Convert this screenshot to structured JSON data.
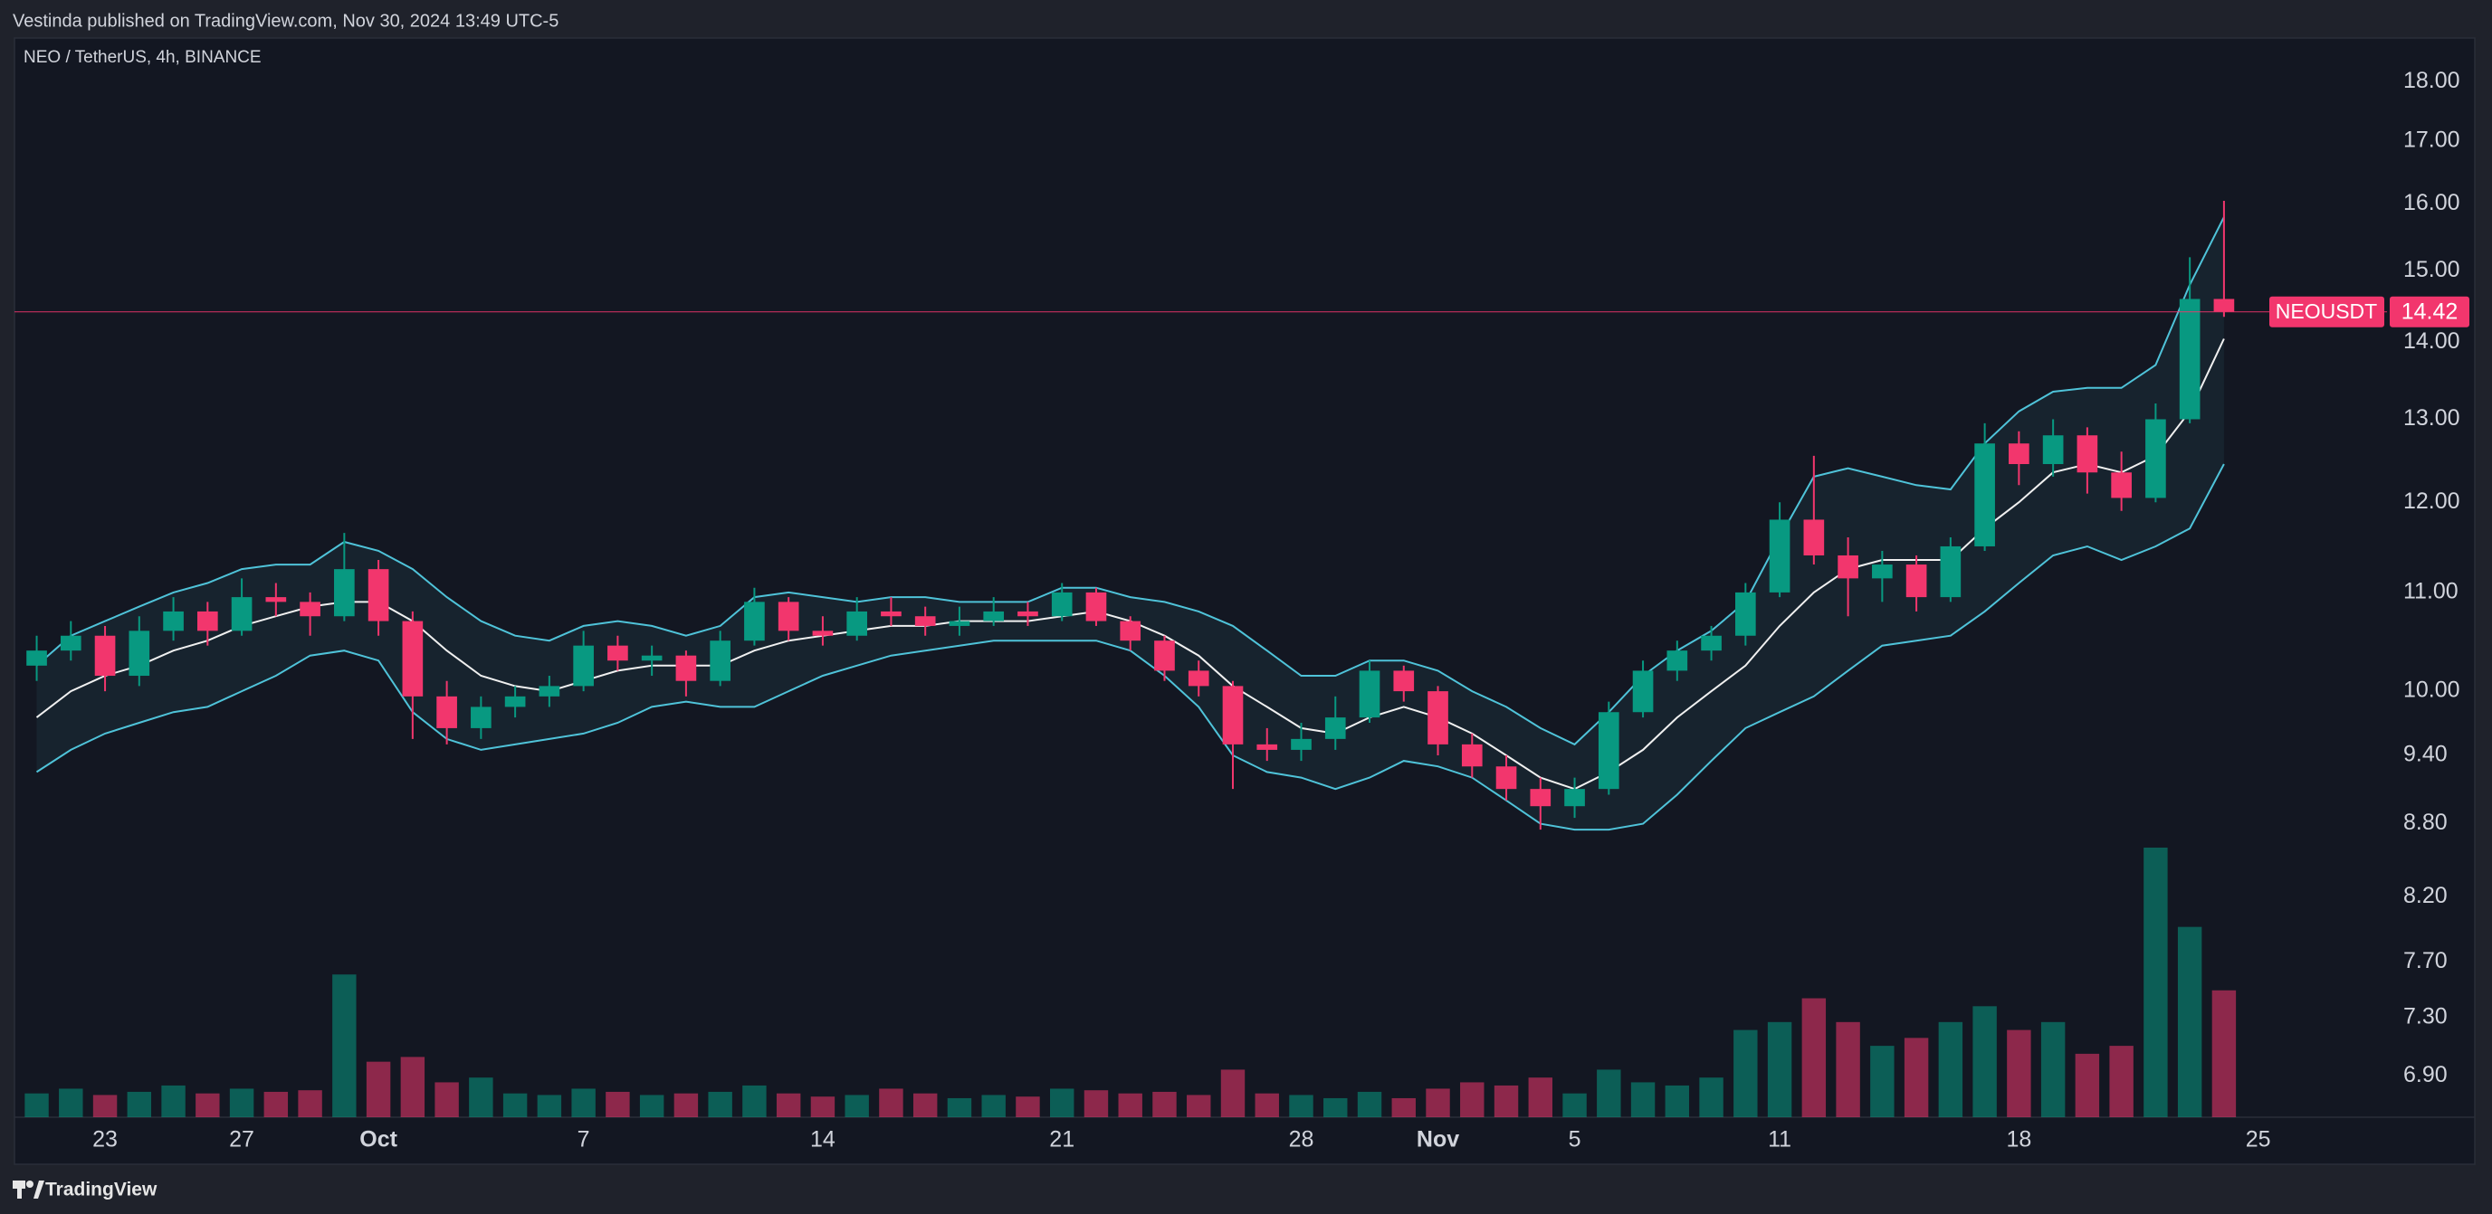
{
  "chart_data": {
    "type": "candlestick",
    "publisher": "Vestinda published on TradingView.com, Nov 30, 2024 13:49 UTC-5",
    "title": "NEO / TetherUS, 4h, BINANCE",
    "footer": "TradingView",
    "log_scale": true,
    "grid": false,
    "up_color": "#089981",
    "down_color": "#f2366d",
    "band_color": "#4fc3d9",
    "basis_color": "#f0f0f0",
    "last_price": {
      "symbol": "NEOUSDT",
      "value": 14.42,
      "color": "#f2366d"
    },
    "xlim": [
      20.35,
      89.77
    ],
    "xticks": [
      23,
      27,
      {
        "value": 31,
        "label": "Oct"
      },
      {
        "value": 37,
        "label": "7"
      },
      {
        "value": 44,
        "label": "14"
      },
      {
        "value": 51,
        "label": "21"
      },
      {
        "value": 58,
        "label": "28"
      },
      {
        "value": 62,
        "label": "Nov"
      },
      {
        "value": 66,
        "label": "5"
      },
      {
        "value": 72,
        "label": "11"
      },
      {
        "value": 79,
        "label": "18"
      },
      {
        "value": 86,
        "label": "25"
      }
    ],
    "ylim": [
      6.63,
      18.78
    ],
    "yticks": [
      {
        "value": 18,
        "label": "18.00"
      },
      {
        "value": 17,
        "label": "17.00"
      },
      {
        "value": 16,
        "label": "16.00"
      },
      {
        "value": 15,
        "label": "15.00"
      },
      {
        "value": 14,
        "label": "14.00"
      },
      {
        "value": 13,
        "label": "13.00"
      },
      {
        "value": 12,
        "label": "12.00"
      },
      {
        "value": 11,
        "label": "11.00"
      },
      {
        "value": 10,
        "label": "10.00"
      },
      {
        "value": 9.4,
        "label": "9.40"
      },
      {
        "value": 8.8,
        "label": "8.80"
      },
      {
        "value": 8.2,
        "label": "8.20"
      },
      {
        "value": 7.7,
        "label": "7.70"
      },
      {
        "value": 7.3,
        "label": "7.30"
      },
      {
        "value": 6.9,
        "label": "6.90"
      }
    ],
    "x": [
      21,
      22,
      23,
      24,
      25,
      26,
      27,
      28,
      29,
      30,
      31,
      32,
      33,
      34,
      35,
      36,
      37,
      38,
      39,
      40,
      41,
      42,
      43,
      44,
      45,
      46,
      47,
      48,
      49,
      50,
      51,
      52,
      53,
      54,
      55,
      56,
      57,
      58,
      59,
      60,
      61,
      62,
      63,
      64,
      65,
      66,
      67,
      68,
      69,
      70,
      71,
      72,
      73,
      74,
      75,
      76,
      77,
      78,
      79,
      80,
      81,
      82,
      83,
      84,
      85
    ],
    "open": [
      10.25,
      10.4,
      10.55,
      10.15,
      10.6,
      10.8,
      10.6,
      10.95,
      10.9,
      10.75,
      11.25,
      10.7,
      9.95,
      9.65,
      9.85,
      9.95,
      10.05,
      10.45,
      10.3,
      10.35,
      10.1,
      10.5,
      10.9,
      10.6,
      10.55,
      10.8,
      10.75,
      10.65,
      10.7,
      10.8,
      10.75,
      11.0,
      10.7,
      10.5,
      10.2,
      10.05,
      9.5,
      9.45,
      9.55,
      9.75,
      10.2,
      10.0,
      9.5,
      9.3,
      9.1,
      8.95,
      9.1,
      9.8,
      10.2,
      10.4,
      10.55,
      11.0,
      11.8,
      11.4,
      11.15,
      11.3,
      10.95,
      11.5,
      12.7,
      12.45,
      12.8,
      12.35,
      12.05,
      13.0,
      14.6
    ],
    "high": [
      10.55,
      10.7,
      10.65,
      10.75,
      10.95,
      10.9,
      11.15,
      11.1,
      11.0,
      11.65,
      11.35,
      10.8,
      10.1,
      9.95,
      10.05,
      10.15,
      10.6,
      10.55,
      10.45,
      10.4,
      10.6,
      11.05,
      10.95,
      10.75,
      10.95,
      10.95,
      10.85,
      10.85,
      10.95,
      10.9,
      11.1,
      11.05,
      10.75,
      10.55,
      10.3,
      10.1,
      9.65,
      9.7,
      9.95,
      10.3,
      10.25,
      10.05,
      9.6,
      9.4,
      9.2,
      9.2,
      9.9,
      10.3,
      10.5,
      10.65,
      11.1,
      12.0,
      12.55,
      11.6,
      11.45,
      11.4,
      11.6,
      12.95,
      12.85,
      13.0,
      12.9,
      12.6,
      13.2,
      15.2,
      16.05
    ],
    "low": [
      10.1,
      10.3,
      10.0,
      10.05,
      10.5,
      10.45,
      10.55,
      10.75,
      10.55,
      10.7,
      10.55,
      9.55,
      9.5,
      9.55,
      9.75,
      9.85,
      10.0,
      10.2,
      10.15,
      9.95,
      10.05,
      10.45,
      10.5,
      10.45,
      10.5,
      10.65,
      10.55,
      10.55,
      10.65,
      10.65,
      10.7,
      10.65,
      10.4,
      10.1,
      9.95,
      9.1,
      9.35,
      9.35,
      9.45,
      9.7,
      9.9,
      9.4,
      9.2,
      9.0,
      8.75,
      8.85,
      9.05,
      9.75,
      10.1,
      10.3,
      10.45,
      10.95,
      11.3,
      10.75,
      10.9,
      10.8,
      10.9,
      11.45,
      12.2,
      12.3,
      12.1,
      11.9,
      12.0,
      12.95,
      14.35
    ],
    "close": [
      10.4,
      10.55,
      10.15,
      10.6,
      10.8,
      10.6,
      10.95,
      10.9,
      10.75,
      11.25,
      10.7,
      9.95,
      9.65,
      9.85,
      9.95,
      10.05,
      10.45,
      10.3,
      10.35,
      10.1,
      10.5,
      10.9,
      10.6,
      10.55,
      10.8,
      10.75,
      10.65,
      10.7,
      10.8,
      10.75,
      11.0,
      10.7,
      10.5,
      10.2,
      10.05,
      9.5,
      9.45,
      9.55,
      9.75,
      10.2,
      10.0,
      9.5,
      9.3,
      9.1,
      8.95,
      9.1,
      9.8,
      10.2,
      10.4,
      10.55,
      11.0,
      11.8,
      11.4,
      11.15,
      11.3,
      10.95,
      11.5,
      12.7,
      12.45,
      12.8,
      12.35,
      12.05,
      13.0,
      14.6,
      14.42
    ],
    "volume": [
      15,
      18,
      14,
      16,
      20,
      15,
      18,
      16,
      17,
      90,
      35,
      38,
      22,
      25,
      15,
      14,
      18,
      16,
      14,
      15,
      16,
      20,
      15,
      13,
      14,
      18,
      15,
      12,
      14,
      13,
      18,
      17,
      15,
      16,
      14,
      30,
      15,
      14,
      12,
      16,
      12,
      18,
      22,
      20,
      25,
      15,
      30,
      22,
      20,
      25,
      55,
      60,
      75,
      60,
      45,
      50,
      60,
      70,
      55,
      60,
      40,
      45,
      170,
      120,
      80
    ],
    "bb_upper": [
      10.25,
      10.55,
      10.7,
      10.85,
      11.0,
      11.1,
      11.25,
      11.3,
      11.3,
      11.55,
      11.45,
      11.25,
      10.95,
      10.7,
      10.55,
      10.5,
      10.65,
      10.7,
      10.65,
      10.55,
      10.65,
      10.95,
      11.0,
      10.95,
      10.9,
      10.95,
      10.95,
      10.9,
      10.9,
      10.9,
      11.05,
      11.05,
      10.95,
      10.9,
      10.8,
      10.65,
      10.4,
      10.15,
      10.15,
      10.3,
      10.3,
      10.2,
      10.0,
      9.85,
      9.65,
      9.5,
      9.8,
      10.15,
      10.4,
      10.6,
      10.9,
      11.6,
      12.3,
      12.4,
      12.3,
      12.2,
      12.15,
      12.7,
      13.1,
      13.35,
      13.4,
      13.4,
      13.7,
      14.8,
      15.8
    ],
    "bb_basis": [
      9.75,
      10.0,
      10.15,
      10.25,
      10.4,
      10.5,
      10.65,
      10.75,
      10.85,
      10.9,
      10.9,
      10.7,
      10.4,
      10.15,
      10.05,
      10.0,
      10.1,
      10.2,
      10.25,
      10.25,
      10.25,
      10.4,
      10.5,
      10.55,
      10.6,
      10.65,
      10.65,
      10.7,
      10.7,
      10.7,
      10.75,
      10.8,
      10.7,
      10.55,
      10.35,
      10.05,
      9.85,
      9.65,
      9.6,
      9.75,
      9.85,
      9.75,
      9.6,
      9.4,
      9.2,
      9.1,
      9.25,
      9.45,
      9.75,
      10.0,
      10.25,
      10.65,
      11.0,
      11.25,
      11.35,
      11.35,
      11.35,
      11.7,
      12.0,
      12.35,
      12.45,
      12.35,
      12.55,
      13.1,
      14.05
    ],
    "bb_lower": [
      9.25,
      9.45,
      9.6,
      9.7,
      9.8,
      9.85,
      10.0,
      10.15,
      10.35,
      10.4,
      10.3,
      9.8,
      9.55,
      9.45,
      9.5,
      9.55,
      9.6,
      9.7,
      9.85,
      9.9,
      9.85,
      9.85,
      10.0,
      10.15,
      10.25,
      10.35,
      10.4,
      10.45,
      10.5,
      10.5,
      10.5,
      10.5,
      10.4,
      10.15,
      9.85,
      9.4,
      9.25,
      9.2,
      9.1,
      9.2,
      9.35,
      9.3,
      9.2,
      9.0,
      8.8,
      8.75,
      8.75,
      8.8,
      9.05,
      9.35,
      9.65,
      9.8,
      9.95,
      10.2,
      10.45,
      10.5,
      10.55,
      10.8,
      11.1,
      11.4,
      11.5,
      11.35,
      11.5,
      11.7,
      12.45
    ]
  }
}
